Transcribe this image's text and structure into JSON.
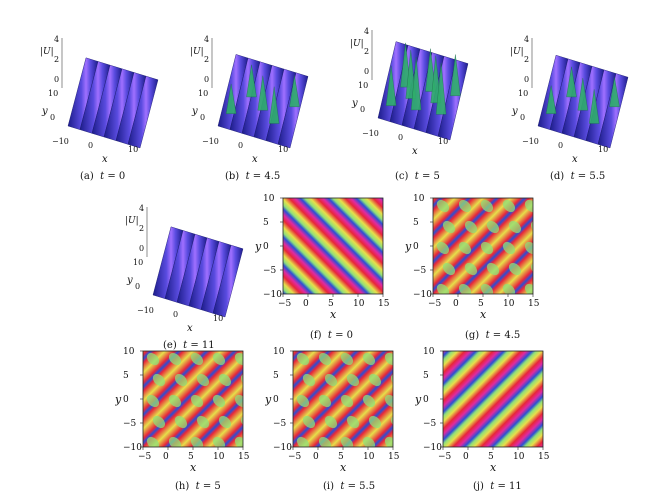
{
  "surface_axes": {
    "u_label": "|U|",
    "u_ticks": [
      "4",
      "2",
      "0"
    ],
    "y_label": "y",
    "y_ticks": [
      "10",
      "0",
      "−10"
    ],
    "x_label": "x",
    "x_ticks": [
      "0",
      "10"
    ]
  },
  "density_axes": {
    "x_label": "x",
    "y_label": "y",
    "x_ticks": [
      "−5",
      "0",
      "5",
      "10",
      "15"
    ],
    "y_ticks": [
      "10",
      "5",
      "0",
      "−5",
      "−10"
    ]
  },
  "panels": [
    {
      "id": "a",
      "kind": "surface",
      "caption_letter": "(a)",
      "caption_var": "t",
      "caption_value": "= 0",
      "peak": 0.55
    },
    {
      "id": "b",
      "kind": "surface",
      "caption_letter": "(b)",
      "caption_var": "t",
      "caption_value": "= 4.5",
      "peak": 1.4
    },
    {
      "id": "c",
      "kind": "surface",
      "caption_letter": "(c)",
      "caption_var": "t",
      "caption_value": "= 5",
      "peak": 2.6
    },
    {
      "id": "d",
      "kind": "surface",
      "caption_letter": "(d)",
      "caption_var": "t",
      "caption_value": "= 5.5",
      "peak": 1.2
    },
    {
      "id": "e",
      "kind": "surface",
      "caption_letter": "(e)",
      "caption_var": "t",
      "caption_value": "= 11",
      "peak": 0.55
    },
    {
      "id": "f",
      "kind": "density",
      "caption_letter": "(f)",
      "caption_var": "t",
      "caption_value": "= 0",
      "pattern": "stripes",
      "direction": "diagonal-up"
    },
    {
      "id": "g",
      "kind": "density",
      "caption_letter": "(g)",
      "caption_var": "t",
      "caption_value": "= 4.5",
      "pattern": "blobs",
      "direction": "diagonal-down"
    },
    {
      "id": "h",
      "kind": "density",
      "caption_letter": "(h)",
      "caption_var": "t",
      "caption_value": "= 5",
      "pattern": "blobs",
      "direction": "diagonal-down"
    },
    {
      "id": "i",
      "kind": "density",
      "caption_letter": "(i)",
      "caption_var": "t",
      "caption_value": "= 5.5",
      "pattern": "blobs",
      "direction": "diagonal-down"
    },
    {
      "id": "j",
      "kind": "density",
      "caption_letter": "(j)",
      "caption_var": "t",
      "caption_value": "= 11",
      "pattern": "stripes",
      "direction": "diagonal-down"
    }
  ],
  "colors": {
    "surface_dark": "#1c1c8a",
    "surface_mid": "#5a4ce0",
    "surface_light": "#a070ff",
    "surface_peak": "#2fae6b",
    "density_red": "#e8263a",
    "density_yellow": "#e6e04a",
    "density_green": "#8fe07a",
    "density_blue": "#2a4fd6",
    "density_magenta": "#e02aa0"
  }
}
